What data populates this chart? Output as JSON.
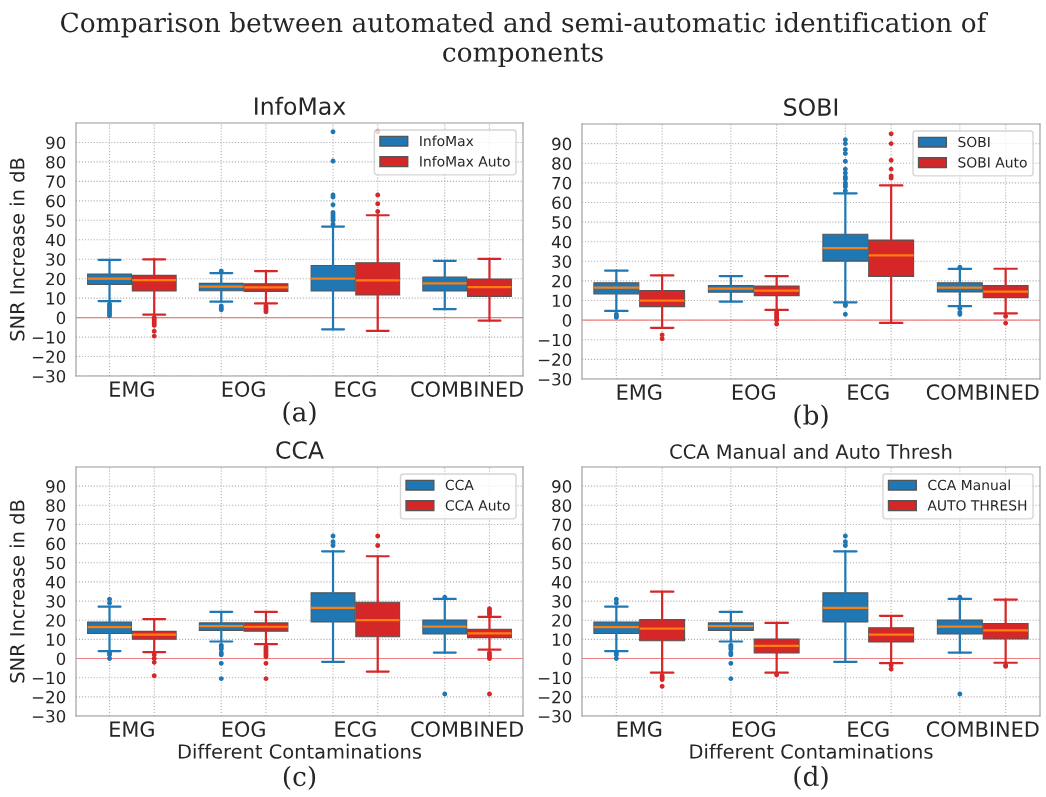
{
  "chart_data": [
    {
      "type": "box",
      "title": "InfoMax",
      "ylabel": "SNR Increase in dB",
      "annotations": [
        "(a)",
        "Comparison between automated and semi-automatic identification of components"
      ],
      "categories": [
        "EMG",
        "EOG",
        "ECG",
        "COMBINED"
      ],
      "ylim": [
        -30,
        100
      ],
      "yticks": [
        -30,
        -20,
        -10,
        0,
        10,
        20,
        30,
        40,
        50,
        60,
        70,
        80,
        90
      ],
      "grid": true,
      "legend": "top right",
      "ref_lines": [
        {
          "axis": "y",
          "value": 0,
          "color": "#f08080"
        }
      ],
      "series": [
        {
          "name": "InfoMax",
          "color": "#1f77b4",
          "boxes": [
            {
              "low": 8.5,
              "q1": 17.1,
              "median": 20,
              "q3": 22.4,
              "high": 29.7,
              "outliers": [
                7,
                6,
                5,
                4,
                3,
                2,
                1
              ]
            },
            {
              "low": 8.2,
              "q1": 13.8,
              "median": 15.9,
              "q3": 17.6,
              "high": 22.9,
              "outliers": [
                24,
                6,
                5,
                4
              ]
            },
            {
              "low": -6,
              "q1": 13.7,
              "median": 20,
              "q3": 26.8,
              "high": 46.8,
              "outliers": [
                48,
                50,
                51,
                52,
                53,
                54,
                58,
                62,
                63,
                80.5,
                95.5
              ]
            },
            {
              "low": 4.4,
              "q1": 13.7,
              "median": 17.6,
              "q3": 20.8,
              "high": 29.2
            }
          ]
        },
        {
          "name": "InfoMax Auto",
          "color": "#d62728",
          "boxes": [
            {
              "low": 1.5,
              "q1": 13.7,
              "median": 19.3,
              "q3": 21.7,
              "high": 29.9,
              "outliers": [
                0,
                -1,
                -2,
                -3,
                -4,
                -7,
                -9.5
              ]
            },
            {
              "low": 7.3,
              "q1": 13.5,
              "median": 15.5,
              "q3": 17.4,
              "high": 23.9,
              "outliers": [
                6,
                5,
                4,
                3
              ]
            },
            {
              "low": -6.8,
              "q1": 11.6,
              "median": 19.1,
              "q3": 28.2,
              "high": 52.6,
              "outliers": [
                54.5,
                58.5,
                63,
                95.5
              ]
            },
            {
              "low": -1.5,
              "q1": 10.9,
              "median": 15.7,
              "q3": 19.8,
              "high": 30.2
            }
          ]
        }
      ]
    },
    {
      "type": "box",
      "title": "SOBI",
      "annotations": [
        "(b)"
      ],
      "categories": [
        "EMG",
        "EOG",
        "ECG",
        "COMBINED"
      ],
      "ylim": [
        -30,
        100
      ],
      "yticks": [
        -30,
        -20,
        -10,
        0,
        10,
        20,
        30,
        40,
        50,
        60,
        70,
        80,
        90
      ],
      "grid": true,
      "legend": "top right",
      "ref_lines": [
        {
          "axis": "y",
          "value": 0,
          "color": "#f08080"
        }
      ],
      "series": [
        {
          "name": "SOBI",
          "color": "#1f77b4",
          "boxes": [
            {
              "low": 4.7,
              "q1": 13.4,
              "median": 16.6,
              "q3": 19.1,
              "high": 25.2,
              "outliers": [
                3,
                2,
                1.5
              ]
            },
            {
              "low": 9.5,
              "q1": 14.2,
              "median": 16.1,
              "q3": 17.6,
              "high": 22.5
            },
            {
              "low": 9.1,
              "q1": 30.1,
              "median": 36.7,
              "q3": 43.8,
              "high": 64.6,
              "outliers": [
                66,
                68,
                69,
                70,
                72,
                73,
                75,
                77,
                81,
                85,
                87,
                90,
                92,
                8,
                7.5,
                3
              ]
            },
            {
              "low": 7.1,
              "q1": 14.4,
              "median": 16.6,
              "q3": 19.1,
              "high": 26.1,
              "outliers": [
                27,
                6,
                4,
                3
              ]
            }
          ]
        },
        {
          "name": "SOBI Auto",
          "color": "#d62728",
          "boxes": [
            {
              "low": -3.9,
              "q1": 6.9,
              "median": 10,
              "q3": 15.1,
              "high": 22.8,
              "outliers": [
                -7.5,
                -9.5
              ]
            },
            {
              "low": 5.2,
              "q1": 12.5,
              "median": 15.1,
              "q3": 17.4,
              "high": 22.5,
              "outliers": [
                4,
                3,
                2,
                1,
                0,
                -2
              ]
            },
            {
              "low": -1.4,
              "q1": 22.3,
              "median": 33,
              "q3": 40.8,
              "high": 68.7,
              "outliers": [
                72.5,
                73.5,
                77,
                81.5,
                90,
                95
              ]
            },
            {
              "low": 3.4,
              "q1": 11.5,
              "median": 14.6,
              "q3": 17.6,
              "high": 26.2,
              "outliers": [
                2,
                -1.5
              ]
            }
          ]
        }
      ]
    },
    {
      "type": "box",
      "title": "CCA",
      "xlabel": "Different Contaminations",
      "ylabel": "SNR Increase in dB",
      "annotations": [
        "(c)"
      ],
      "categories": [
        "EMG",
        "EOG",
        "ECG",
        "COMBINED"
      ],
      "ylim": [
        -30,
        100
      ],
      "yticks": [
        -30,
        -20,
        -10,
        0,
        10,
        20,
        30,
        40,
        50,
        60,
        70,
        80,
        90
      ],
      "grid": true,
      "legend": "top right",
      "ref_lines": [
        {
          "axis": "y",
          "value": 0,
          "color": "#f08080"
        }
      ],
      "series": [
        {
          "name": "CCA",
          "color": "#1f77b4",
          "boxes": [
            {
              "low": 3.9,
              "q1": 13.1,
              "median": 16.4,
              "q3": 19.1,
              "high": 27.1,
              "outliers": [
                31,
                29,
                3,
                2,
                0
              ]
            },
            {
              "low": 8.9,
              "q1": 14.7,
              "median": 16.9,
              "q3": 18.6,
              "high": 24.4,
              "outliers": [
                7,
                6,
                5,
                3,
                2,
                -2.5,
                -10.5
              ]
            },
            {
              "low": -1.7,
              "q1": 19.1,
              "median": 26.5,
              "q3": 34.3,
              "high": 56,
              "outliers": [
                59,
                61,
                64
              ]
            },
            {
              "low": 3.1,
              "q1": 12.8,
              "median": 16.7,
              "q3": 20.1,
              "high": 31.1,
              "outliers": [
                32,
                -18.5
              ]
            }
          ]
        },
        {
          "name": "CCA Auto",
          "color": "#d62728",
          "boxes": [
            {
              "low": 3.4,
              "q1": 10.1,
              "median": 12.5,
              "q3": 14.2,
              "high": 20.6,
              "outliers": [
                2,
                0,
                -2,
                -9
              ]
            },
            {
              "low": 7.5,
              "q1": 14.3,
              "median": 16.6,
              "q3": 18.6,
              "high": 24.4,
              "outliers": [
                6,
                5,
                4,
                3,
                2,
                1,
                -2.5,
                -10.5
              ]
            },
            {
              "low": -6.8,
              "q1": 11.4,
              "median": 20,
              "q3": 29.4,
              "high": 53.4,
              "outliers": [
                59,
                64
              ]
            },
            {
              "low": 4.6,
              "q1": 10.9,
              "median": 13.1,
              "q3": 15.2,
              "high": 21.7,
              "outliers": [
                23,
                24,
                25,
                26,
                3,
                2,
                1,
                0,
                -18.5
              ]
            }
          ]
        }
      ]
    },
    {
      "type": "box",
      "title": "CCA Manual and Auto Thresh",
      "xlabel": "Different Contaminations",
      "annotations": [
        "(d)"
      ],
      "categories": [
        "EMG",
        "EOG",
        "ECG",
        "COMBINED"
      ],
      "ylim": [
        -30,
        100
      ],
      "yticks": [
        -30,
        -20,
        -10,
        0,
        10,
        20,
        30,
        40,
        50,
        60,
        70,
        80,
        90
      ],
      "grid": true,
      "legend": "top right",
      "ref_lines": [
        {
          "axis": "y",
          "value": 0,
          "color": "#f08080"
        }
      ],
      "series": [
        {
          "name": "CCA Manual",
          "color": "#1f77b4",
          "boxes": [
            {
              "low": 3.9,
              "q1": 13.1,
              "median": 16.4,
              "q3": 19.1,
              "high": 27.1,
              "outliers": [
                31,
                29,
                3,
                2,
                0
              ]
            },
            {
              "low": 8.9,
              "q1": 14.7,
              "median": 16.9,
              "q3": 18.6,
              "high": 24.4,
              "outliers": [
                7,
                6,
                5,
                3,
                2,
                -2.5,
                -10.5
              ]
            },
            {
              "low": -1.7,
              "q1": 19.1,
              "median": 26.5,
              "q3": 34.3,
              "high": 56,
              "outliers": [
                59,
                61,
                64
              ]
            },
            {
              "low": 3.1,
              "q1": 12.8,
              "median": 16.7,
              "q3": 20.1,
              "high": 31.1,
              "outliers": [
                32,
                -18.5
              ]
            }
          ]
        },
        {
          "name": "AUTO THRESH",
          "color": "#d62728",
          "boxes": [
            {
              "low": -7.4,
              "q1": 9.3,
              "median": 15.6,
              "q3": 20.3,
              "high": 34.9,
              "outliers": [
                -9,
                -10,
                -11,
                -14.5
              ]
            },
            {
              "low": -7.4,
              "q1": 2.9,
              "median": 6.6,
              "q3": 10.2,
              "high": 18.6,
              "outliers": [
                -8.5
              ]
            },
            {
              "low": -2.4,
              "q1": 8.6,
              "median": 12.5,
              "q3": 16.1,
              "high": 22.3,
              "outliers": [
                -3.5,
                -5.5
              ]
            },
            {
              "low": -2.2,
              "q1": 10.2,
              "median": 14.7,
              "q3": 18.3,
              "high": 30.8,
              "outliers": [
                -3.5,
                -4
              ]
            }
          ]
        }
      ]
    }
  ]
}
